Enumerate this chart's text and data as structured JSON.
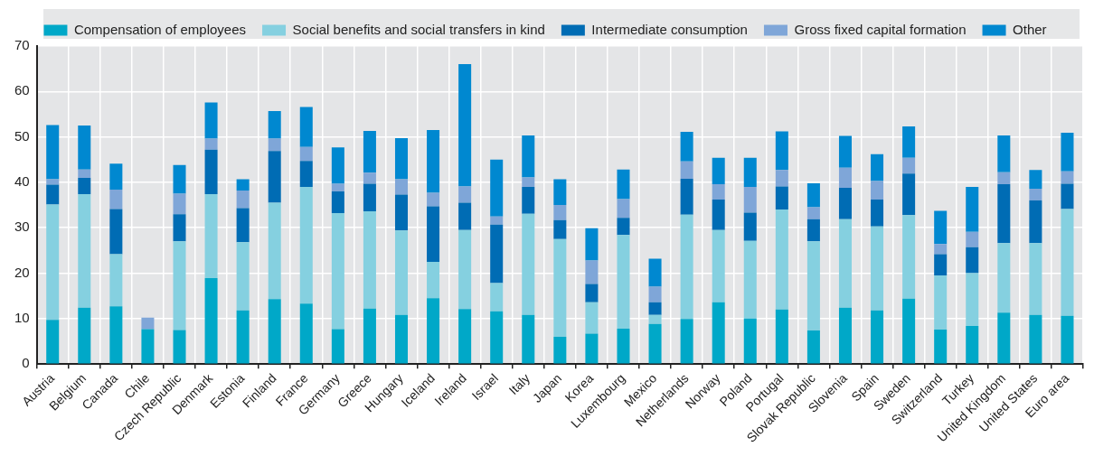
{
  "chart_data": {
    "type": "bar",
    "stacked": true,
    "legend": "top",
    "grid": true,
    "categories": [
      "Austria",
      "Belgium",
      "Canada",
      "Chile",
      "Czech Republic",
      "Denmark",
      "Estonia",
      "Finland",
      "France",
      "Germany",
      "Greece",
      "Hungary",
      "Iceland",
      "Ireland",
      "Israel",
      "Italy",
      "Japan",
      "Korea",
      "Luxembourg",
      "Mexico",
      "Netherlands",
      "Norway",
      "Poland",
      "Portugal",
      "Slovak Republic",
      "Slovenia",
      "Spain",
      "Sweden",
      "Switzerland",
      "Turkey",
      "United Kingdom",
      "United States",
      "Euro area"
    ],
    "ylim": [
      0,
      70
    ],
    "yticks": [
      0,
      10,
      20,
      30,
      40,
      50,
      60,
      70
    ],
    "series": [
      {
        "name": "Compensation of employees",
        "color": "#00a8c8",
        "values": [
          9.7,
          12.4,
          12.7,
          7.7,
          7.5,
          18.9,
          11.8,
          14.3,
          13.3,
          7.7,
          12.2,
          10.8,
          14.5,
          12.1,
          11.6,
          10.8,
          6.0,
          6.7,
          7.8,
          8.8,
          9.9,
          13.6,
          10.0,
          12.0,
          7.4,
          12.4,
          11.8,
          14.4,
          7.6,
          8.4,
          11.3,
          10.8,
          10.6
        ]
      },
      {
        "name": "Social benefits and social transfers in kind",
        "color": "#85d0e0",
        "values": [
          25.4,
          25.0,
          11.5,
          0,
          19.5,
          18.5,
          15.0,
          21.2,
          25.7,
          25.5,
          21.4,
          18.6,
          8.0,
          17.4,
          6.2,
          22.3,
          21.5,
          6.9,
          20.6,
          2.0,
          23.0,
          15.9,
          17.1,
          22.0,
          19.6,
          19.5,
          18.5,
          18.4,
          11.9,
          11.6,
          15.3,
          15.8,
          23.5
        ]
      },
      {
        "name": "Intermediate consumption",
        "color": "#006cb4",
        "values": [
          4.4,
          3.6,
          9.9,
          0,
          6.0,
          9.8,
          7.5,
          11.4,
          5.7,
          4.8,
          6.1,
          7.9,
          12.2,
          6.0,
          12.9,
          5.9,
          4.2,
          4.0,
          3.8,
          2.8,
          7.9,
          6.7,
          6.2,
          5.1,
          4.9,
          6.9,
          5.9,
          9.1,
          4.7,
          5.7,
          13.0,
          9.4,
          5.6
        ]
      },
      {
        "name": "Gross fixed capital formation",
        "color": "#7fa6d8",
        "values": [
          1.2,
          1.8,
          4.3,
          2.5,
          4.5,
          2.4,
          3.9,
          2.7,
          3.1,
          1.7,
          2.4,
          3.4,
          3.0,
          3.6,
          1.8,
          2.1,
          3.3,
          5.2,
          4.1,
          3.4,
          3.8,
          3.4,
          5.7,
          3.6,
          2.6,
          4.4,
          4.1,
          3.5,
          2.2,
          3.4,
          2.6,
          2.6,
          2.7
        ]
      },
      {
        "name": "Other",
        "color": "#0088d0",
        "values": [
          11.9,
          9.7,
          5.7,
          0,
          6.3,
          8.0,
          2.5,
          6.1,
          8.8,
          8.0,
          9.2,
          9.0,
          13.8,
          26.9,
          12.5,
          9.2,
          5.7,
          7.1,
          6.5,
          6.2,
          6.5,
          5.8,
          6.4,
          8.5,
          5.3,
          7.0,
          5.9,
          6.9,
          7.3,
          9.9,
          8.1,
          4.1,
          8.5
        ]
      }
    ]
  }
}
